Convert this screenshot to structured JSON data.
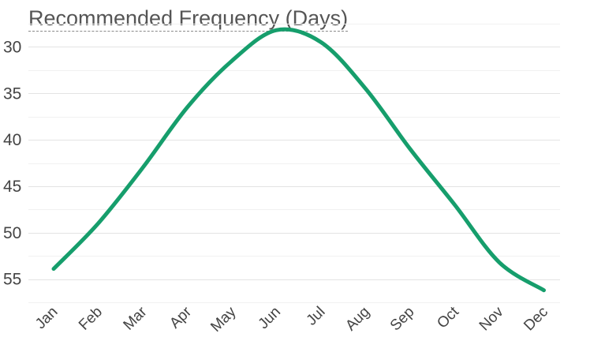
{
  "chart_data": {
    "type": "line",
    "title": "Recommended Frequency (Days)",
    "xlabel": "",
    "ylabel": "",
    "categories": [
      "Jan",
      "Feb",
      "Mar",
      "Apr",
      "May",
      "Jun",
      "Jul",
      "Aug",
      "Sep",
      "Oct",
      "Nov",
      "Dec"
    ],
    "series": [
      {
        "values": [
          53.9,
          49,
          43,
          36.5,
          31.5,
          28.2,
          29.5,
          34.5,
          41,
          47,
          53.2,
          56.2
        ],
        "color": "#169e6c"
      }
    ],
    "y_axis": {
      "reversed": true,
      "ticks": [
        30,
        35,
        40,
        45,
        50,
        55
      ],
      "ylim": [
        27.5,
        57.5
      ]
    },
    "grid": true,
    "legend": "none"
  }
}
